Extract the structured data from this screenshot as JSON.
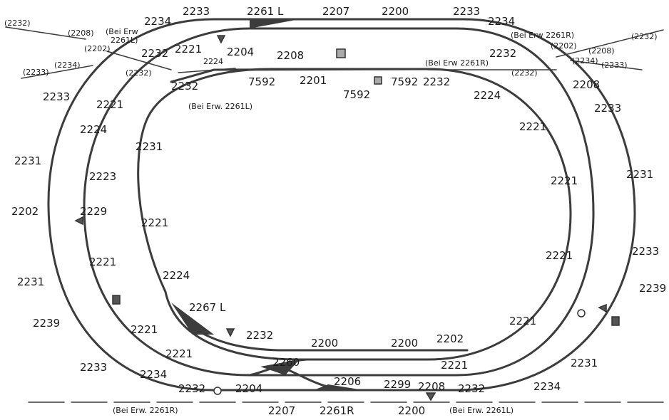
{
  "labels": {
    "t_2261L": "2261 L",
    "t_2207": "2207",
    "t_2200": "2200",
    "t_2233_l": "2233",
    "t_2233_r": "2233",
    "t_2234_l": "2234",
    "t_2234_r": "2234",
    "t_2232_tl": "(2232)",
    "t_2232_tr": "(2232)",
    "t_2208_tl": "(2208)",
    "t_2208_tr": "(2208)",
    "t_2202_tl": "(2202)",
    "t_2202_tr": "(2202)",
    "t_2234p_l": "(2234)",
    "t_2234p_r": "(2234)",
    "t_2233p_l": "(2233)",
    "t_2233p_r": "(2233)",
    "t_2232p_l": "(2232)",
    "t_2232p_r": "(2232)",
    "t_beierw_tl1": "(Bei Erw",
    "t_beierw_tl2": "2261L)",
    "t_beierw_tr": "(Bei Erw 2261R)",
    "t_2232_a": "2232",
    "t_2221_a": "2221",
    "t_2204_a": "2204",
    "t_2224_a": "2224",
    "t_2208_m": "2208",
    "t_beierw_mr": "(Bei Erw 2261R)",
    "t_2232_b": "2232",
    "t_2232_c": "2232",
    "t_7592_a": "7592",
    "t_2201": "2201",
    "t_7592_b": "7592",
    "t_7592_c": "7592",
    "t_2232_d": "2232",
    "t_beierw_ml": "(Bei Erw. 2261L)",
    "t_2233_ol": "2233",
    "t_2221_l1": "2221",
    "t_2224_l": "2224",
    "t_2231_l1": "2231",
    "t_2231_il": "2231",
    "t_2223": "2223",
    "t_2202_l": "2202",
    "t_2229": "2229",
    "t_2221_l2": "2221",
    "t_2221_l3": "2221",
    "t_2231_l2": "2231",
    "t_2224_l2": "2224",
    "t_2267L": "2267 L",
    "t_2239_l": "2239",
    "t_2221_l4": "2221",
    "t_2221_l5": "2221",
    "t_2233_bl": "2233",
    "t_2234_bl": "2234",
    "t_2232_bl": "2232",
    "t_2204_b": "2204",
    "t_2260": "2260",
    "t_2206": "2206",
    "t_2299": "2299",
    "t_2208_b": "2208",
    "t_2232_br": "2232",
    "t_2234_br": "2234",
    "t_2232_m": "2232",
    "t_2200_m1": "2200",
    "t_2200_m2": "2200",
    "t_2202_m": "2202",
    "t_2221_bm": "2221",
    "t_2224_r": "2224",
    "t_2208_r": "2208",
    "t_2233_r2": "2233",
    "t_2221_r1": "2221",
    "t_2231_r1": "2231",
    "t_2221_r2": "2221",
    "t_2221_r3": "2221",
    "t_2233_r3": "2233",
    "t_2239_r": "2239",
    "t_2221_r4": "2221",
    "t_2231_r2": "2231",
    "t_beierw_b1": "(Bei Erw. 2261R)",
    "t_2207_b": "2207",
    "t_2261R": "2261R",
    "t_2200_b": "2200",
    "t_beierw_b2": "(Bei Erw. 2261L)"
  }
}
